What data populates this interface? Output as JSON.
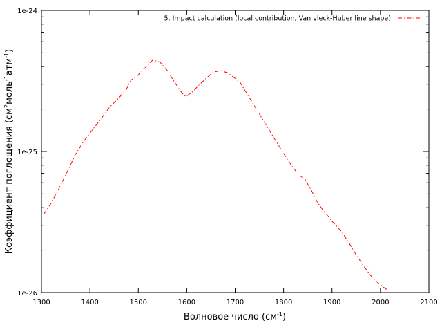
{
  "chart_data": {
    "type": "line",
    "xlabel": "Волновое число (см",
    "xlabel_sup": "-1",
    "xlabel_end": ")",
    "ylabel_parts": [
      "Коэффициент поглощения (см",
      "2",
      "моль",
      "-1",
      "атм",
      "-1",
      ")"
    ],
    "x_ticks": [
      1300,
      1400,
      1500,
      1600,
      1700,
      1800,
      1900,
      2000,
      2100
    ],
    "y_ticks": [
      {
        "value": 1e-26,
        "label": "1e-26"
      },
      {
        "value": 1e-25,
        "label": "1e-25"
      },
      {
        "value": 1e-24,
        "label": "1e-24"
      }
    ],
    "xlim": [
      1300,
      2100
    ],
    "ylim": [
      1e-26,
      1e-24
    ],
    "y_scale": "log",
    "legend_position": "top-right",
    "series": [
      {
        "name": "5. Impact calculation  (local contribution, Van vleck-Huber line shape).",
        "color": "#ff0000",
        "line_style": "dash-dot",
        "x": [
          1305,
          1320,
          1340,
          1355,
          1370,
          1385,
          1400,
          1420,
          1440,
          1460,
          1475,
          1485,
          1500,
          1515,
          1530,
          1545,
          1560,
          1575,
          1590,
          1598,
          1612,
          1625,
          1640,
          1655,
          1670,
          1685,
          1700,
          1710,
          1725,
          1740,
          1760,
          1780,
          1800,
          1815,
          1830,
          1845,
          1860,
          1870,
          1880,
          1900,
          1920,
          1935,
          1950,
          1965,
          1980,
          1995,
          2005,
          2015
        ],
        "y": [
          3.6e-26,
          4.3e-26,
          5.8e-26,
          7.4e-26,
          9.5e-26,
          1.15e-25,
          1.35e-25,
          1.65e-25,
          2.05e-25,
          2.4e-25,
          2.75e-25,
          3.2e-25,
          3.5e-25,
          3.95e-25,
          4.45e-25,
          4.3e-25,
          3.75e-25,
          3.1e-25,
          2.6e-25,
          2.45e-25,
          2.65e-25,
          2.95e-25,
          3.3e-25,
          3.65e-25,
          3.75e-25,
          3.6e-25,
          3.3e-25,
          3.1e-25,
          2.55e-25,
          2.1e-25,
          1.62e-25,
          1.25e-25,
          9.7e-26,
          8.1e-26,
          6.9e-26,
          6.3e-26,
          5.1e-26,
          4.35e-26,
          3.9e-26,
          3.2e-26,
          2.7e-26,
          2.25e-26,
          1.85e-26,
          1.55e-26,
          1.32e-26,
          1.17e-26,
          1.1e-26,
          1.04e-26
        ]
      }
    ]
  }
}
